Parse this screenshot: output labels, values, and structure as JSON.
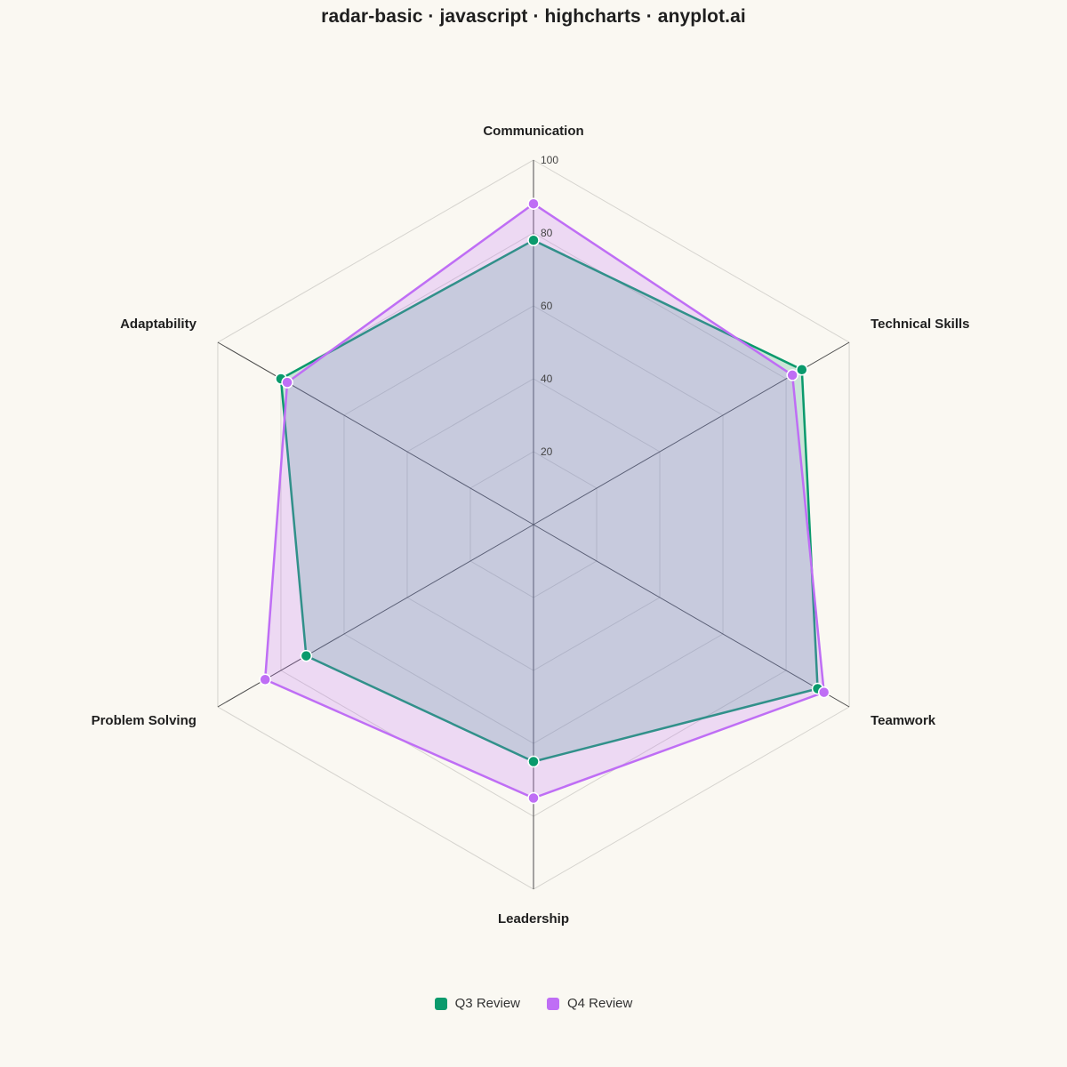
{
  "chart_data": {
    "type": "radar",
    "title": "radar-basic · javascript · highcharts · anyplot.ai",
    "categories": [
      "Communication",
      "Technical Skills",
      "Teamwork",
      "Leadership",
      "Problem Solving",
      "Adaptability"
    ],
    "radial_ticks": [
      20,
      40,
      60,
      80,
      100
    ],
    "ylim": [
      0,
      100
    ],
    "grid": true,
    "legend_position": "bottom-center",
    "series": [
      {
        "name": "Q3 Review",
        "color": "#0A9A6C",
        "values": [
          78,
          85,
          90,
          65,
          72,
          80
        ]
      },
      {
        "name": "Q4 Review",
        "color": "#BF6EF5",
        "values": [
          88,
          82,
          92,
          75,
          85,
          78
        ]
      }
    ]
  }
}
